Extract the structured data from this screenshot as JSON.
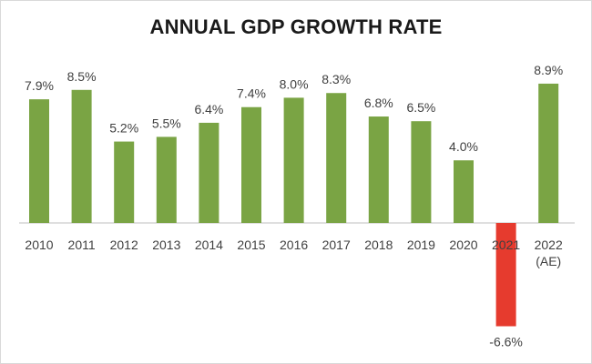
{
  "chart_data": {
    "type": "bar",
    "title": "ANNUAL GDP GROWTH RATE",
    "categories": [
      [
        "2010"
      ],
      [
        "2011"
      ],
      [
        "2012"
      ],
      [
        "2013"
      ],
      [
        "2014"
      ],
      [
        "2015"
      ],
      [
        "2016"
      ],
      [
        "2017"
      ],
      [
        "2018"
      ],
      [
        "2019"
      ],
      [
        "2020"
      ],
      [
        "2021"
      ],
      [
        "2022",
        "(AE)"
      ]
    ],
    "values": [
      7.9,
      8.5,
      5.2,
      5.5,
      6.4,
      7.4,
      8.0,
      8.3,
      6.8,
      6.5,
      4.0,
      -6.6,
      8.9
    ],
    "data_labels": [
      "7.9%",
      "8.5%",
      "5.2%",
      "5.5%",
      "6.4%",
      "7.4%",
      "8.0%",
      "8.3%",
      "6.8%",
      "6.5%",
      "4.0%",
      "-6.6%",
      "8.9%"
    ],
    "xlabel": "",
    "ylabel": "",
    "grid": false,
    "legend": "none",
    "positive_color": "#7aa444",
    "negative_color": "#e63b2e",
    "axis_color": "#bfbfbf"
  }
}
